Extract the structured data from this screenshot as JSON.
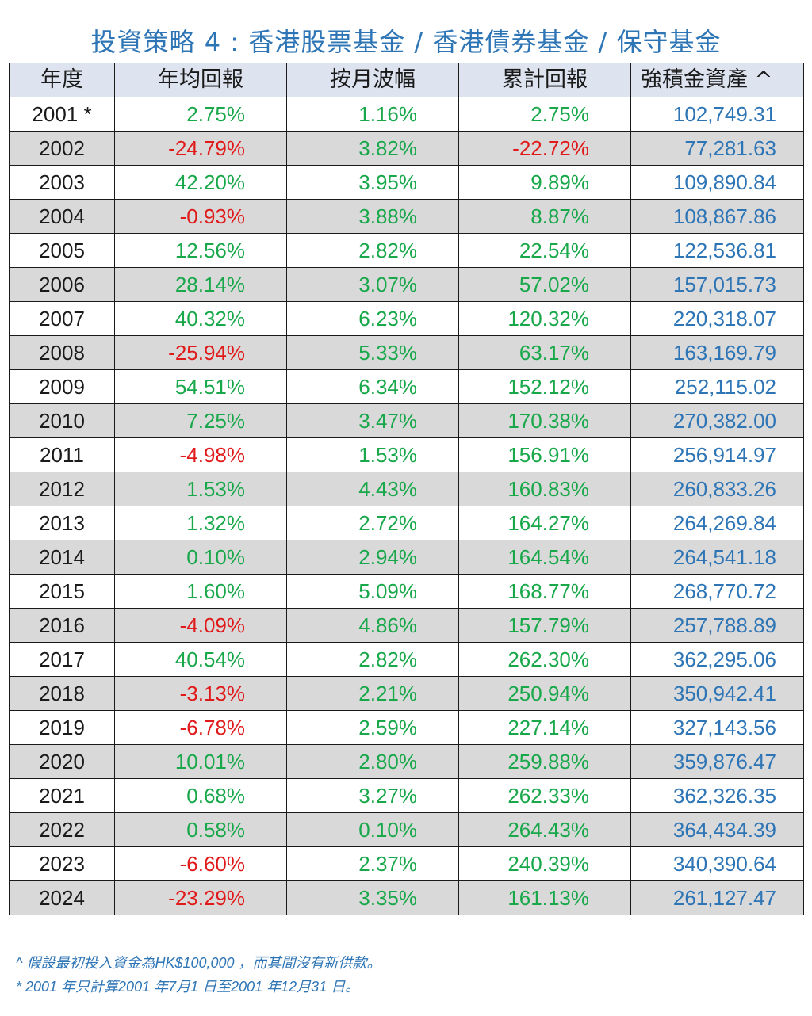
{
  "title": "投資策略 4 : 香港股票基金 / 香港債券基金  /  保守基金",
  "colors": {
    "title": "#2e75b6",
    "positive": "#18a84a",
    "negative": "#e01a1a",
    "asset": "#2e75b6",
    "header_bg": "#dde3ef",
    "stripe_bg": "#d9d9d9"
  },
  "table": {
    "headers": [
      "年度",
      "年均回報",
      "按月波幅",
      "累計回報",
      "強積金資產 ^"
    ],
    "rows": [
      {
        "year": "2001 *",
        "annual": "2.75%",
        "volatility": "1.16%",
        "cumulative": "2.75%",
        "asset": "102,749.31"
      },
      {
        "year": "2002",
        "annual": "-24.79%",
        "volatility": "3.82%",
        "cumulative": "-22.72%",
        "asset": "77,281.63"
      },
      {
        "year": "2003",
        "annual": "42.20%",
        "volatility": "3.95%",
        "cumulative": "9.89%",
        "asset": "109,890.84"
      },
      {
        "year": "2004",
        "annual": "-0.93%",
        "volatility": "3.88%",
        "cumulative": "8.87%",
        "asset": "108,867.86"
      },
      {
        "year": "2005",
        "annual": "12.56%",
        "volatility": "2.82%",
        "cumulative": "22.54%",
        "asset": "122,536.81"
      },
      {
        "year": "2006",
        "annual": "28.14%",
        "volatility": "3.07%",
        "cumulative": "57.02%",
        "asset": "157,015.73"
      },
      {
        "year": "2007",
        "annual": "40.32%",
        "volatility": "6.23%",
        "cumulative": "120.32%",
        "asset": "220,318.07"
      },
      {
        "year": "2008",
        "annual": "-25.94%",
        "volatility": "5.33%",
        "cumulative": "63.17%",
        "asset": "163,169.79"
      },
      {
        "year": "2009",
        "annual": "54.51%",
        "volatility": "6.34%",
        "cumulative": "152.12%",
        "asset": "252,115.02"
      },
      {
        "year": "2010",
        "annual": "7.25%",
        "volatility": "3.47%",
        "cumulative": "170.38%",
        "asset": "270,382.00"
      },
      {
        "year": "2011",
        "annual": "-4.98%",
        "volatility": "1.53%",
        "cumulative": "156.91%",
        "asset": "256,914.97"
      },
      {
        "year": "2012",
        "annual": "1.53%",
        "volatility": "4.43%",
        "cumulative": "160.83%",
        "asset": "260,833.26"
      },
      {
        "year": "2013",
        "annual": "1.32%",
        "volatility": "2.72%",
        "cumulative": "164.27%",
        "asset": "264,269.84"
      },
      {
        "year": "2014",
        "annual": "0.10%",
        "volatility": "2.94%",
        "cumulative": "164.54%",
        "asset": "264,541.18"
      },
      {
        "year": "2015",
        "annual": "1.60%",
        "volatility": "5.09%",
        "cumulative": "168.77%",
        "asset": "268,770.72"
      },
      {
        "year": "2016",
        "annual": "-4.09%",
        "volatility": "4.86%",
        "cumulative": "157.79%",
        "asset": "257,788.89"
      },
      {
        "year": "2017",
        "annual": "40.54%",
        "volatility": "2.82%",
        "cumulative": "262.30%",
        "asset": "362,295.06"
      },
      {
        "year": "2018",
        "annual": "-3.13%",
        "volatility": "2.21%",
        "cumulative": "250.94%",
        "asset": "350,942.41"
      },
      {
        "year": "2019",
        "annual": "-6.78%",
        "volatility": "2.59%",
        "cumulative": "227.14%",
        "asset": "327,143.56"
      },
      {
        "year": "2020",
        "annual": "10.01%",
        "volatility": "2.80%",
        "cumulative": "259.88%",
        "asset": "359,876.47"
      },
      {
        "year": "2021",
        "annual": "0.68%",
        "volatility": "3.27%",
        "cumulative": "262.33%",
        "asset": "362,326.35"
      },
      {
        "year": "2022",
        "annual": "0.58%",
        "volatility": "0.10%",
        "cumulative": "264.43%",
        "asset": "364,434.39"
      },
      {
        "year": "2023",
        "annual": "-6.60%",
        "volatility": "2.37%",
        "cumulative": "240.39%",
        "asset": "340,390.64"
      },
      {
        "year": "2024",
        "annual": "-23.29%",
        "volatility": "3.35%",
        "cumulative": "161.13%",
        "asset": "261,127.47"
      }
    ]
  },
  "notes": [
    "^ 假設最初投入資金為HK$100,000 ，而其間沒有新供款。",
    "* 2001 年只計算2001 年7月1 日至2001 年12月31 日。"
  ]
}
